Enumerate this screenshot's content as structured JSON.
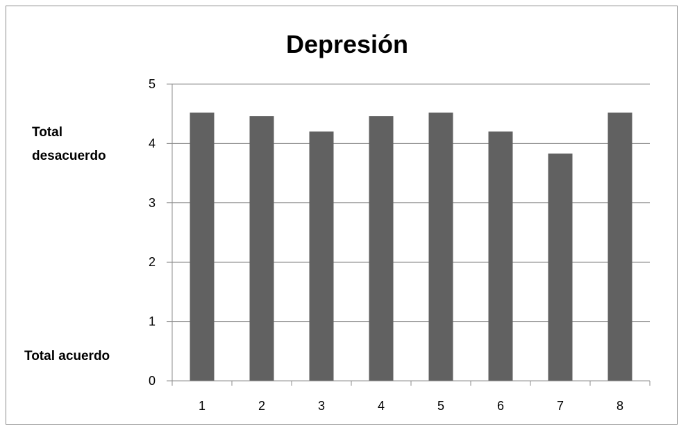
{
  "chart_data": {
    "type": "bar",
    "title": "Depresión",
    "xlabel": "",
    "ylabel": "",
    "categories": [
      "1",
      "2",
      "3",
      "4",
      "5",
      "6",
      "7",
      "8"
    ],
    "values": [
      4.52,
      4.46,
      4.2,
      4.46,
      4.52,
      4.2,
      3.83,
      4.52
    ],
    "ylim": [
      0,
      5
    ],
    "yticks": [
      "0",
      "1",
      "2",
      "3",
      "4",
      "5"
    ],
    "grid": true,
    "legend": "none",
    "bar_color": "#616161",
    "annotations": {
      "upper": [
        "Total",
        "desacuerdo"
      ],
      "lower": "Total acuerdo"
    }
  }
}
